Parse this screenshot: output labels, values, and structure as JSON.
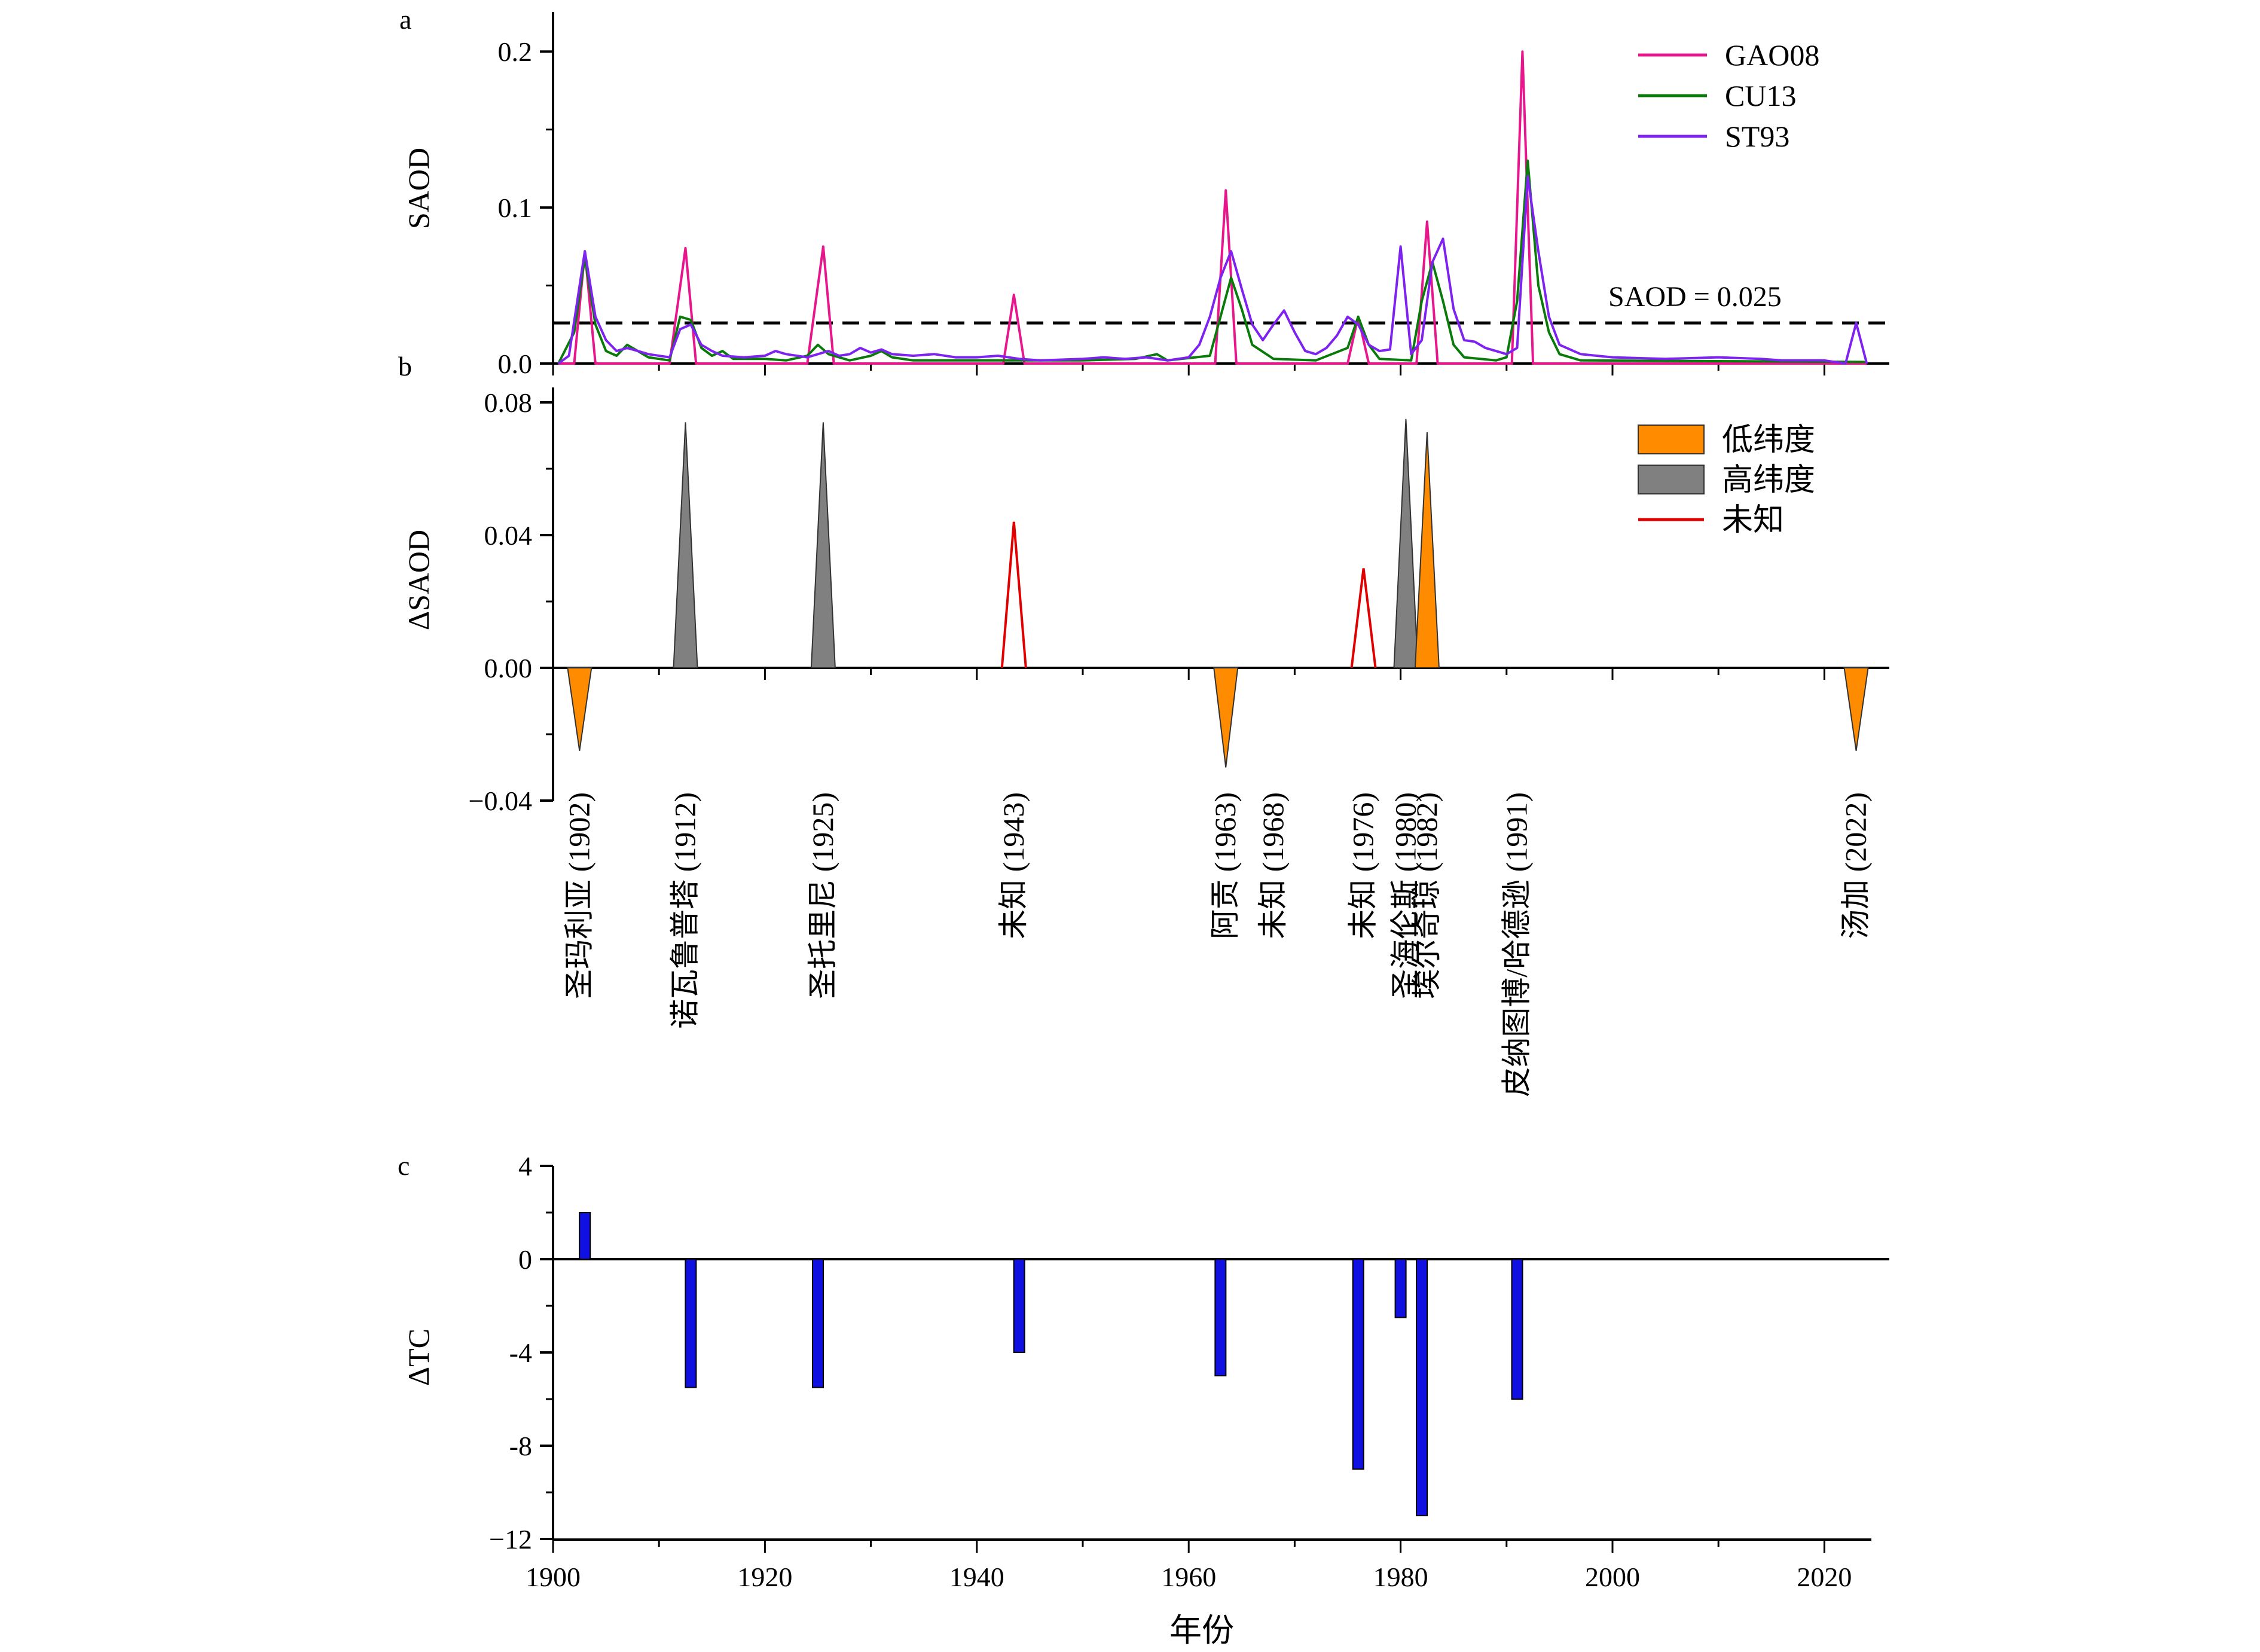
{
  "chart_data": [
    {
      "panel_label": "a",
      "type": "line",
      "ylabel": "SAOD",
      "ylim": [
        0,
        0.225
      ],
      "y_ticks": [
        {
          "v": 0.0,
          "label": "0.0"
        },
        {
          "v": 0.1,
          "label": "0.1"
        },
        {
          "v": 0.2,
          "label": "0.2"
        }
      ],
      "legend": {
        "placement": "top-right"
      },
      "annotation": {
        "text": "SAOD = 0.025",
        "y": 0.026
      },
      "series": [
        {
          "name": "GAO08",
          "color": "#e8168c",
          "points": [
            [
              1900.5,
              0
            ],
            [
              1902,
              0
            ],
            [
              1903,
              0.072
            ],
            [
              1904,
              0
            ],
            [
              1911,
              0
            ],
            [
              1912.5,
              0.074
            ],
            [
              1913.5,
              0
            ],
            [
              1924,
              0
            ],
            [
              1925.5,
              0.075
            ],
            [
              1926.5,
              0
            ],
            [
              1942.5,
              0
            ],
            [
              1943.5,
              0.044
            ],
            [
              1944.5,
              0
            ],
            [
              1962.5,
              0
            ],
            [
              1963.5,
              0.111
            ],
            [
              1964.5,
              0
            ],
            [
              1975,
              0
            ],
            [
              1976,
              0.03
            ],
            [
              1977,
              0
            ],
            [
              1981.5,
              0
            ],
            [
              1982.5,
              0.091
            ],
            [
              1983.5,
              0
            ],
            [
              1990.5,
              0
            ],
            [
              1991.5,
              0.2
            ],
            [
              1992.5,
              0
            ],
            [
              2024,
              0
            ]
          ]
        },
        {
          "name": "CU13",
          "color": "#0a7a0a",
          "points": [
            [
              1900.5,
              0
            ],
            [
              1902,
              0.02
            ],
            [
              1903,
              0.068
            ],
            [
              1904,
              0.025
            ],
            [
              1905,
              0.008
            ],
            [
              1906,
              0.005
            ],
            [
              1907,
              0.012
            ],
            [
              1908,
              0.008
            ],
            [
              1909,
              0.004
            ],
            [
              1911,
              0.002
            ],
            [
              1912,
              0.03
            ],
            [
              1913,
              0.028
            ],
            [
              1914,
              0.01
            ],
            [
              1915,
              0.005
            ],
            [
              1916,
              0.008
            ],
            [
              1917,
              0.003
            ],
            [
              1920,
              0.003
            ],
            [
              1922,
              0.002
            ],
            [
              1924,
              0.005
            ],
            [
              1925,
              0.012
            ],
            [
              1926,
              0.006
            ],
            [
              1928,
              0.002
            ],
            [
              1930,
              0.005
            ],
            [
              1931,
              0.008
            ],
            [
              1932,
              0.004
            ],
            [
              1934,
              0.002
            ],
            [
              1940,
              0.002
            ],
            [
              1950,
              0.002
            ],
            [
              1955,
              0.003
            ],
            [
              1957,
              0.006
            ],
            [
              1958,
              0.002
            ],
            [
              1962,
              0.005
            ],
            [
              1963,
              0.03
            ],
            [
              1964,
              0.055
            ],
            [
              1965,
              0.035
            ],
            [
              1966,
              0.012
            ],
            [
              1968,
              0.003
            ],
            [
              1972,
              0.002
            ],
            [
              1975,
              0.01
            ],
            [
              1976,
              0.03
            ],
            [
              1977,
              0.012
            ],
            [
              1978,
              0.003
            ],
            [
              1981,
              0.002
            ],
            [
              1982,
              0.04
            ],
            [
              1983,
              0.065
            ],
            [
              1984,
              0.04
            ],
            [
              1985,
              0.012
            ],
            [
              1986,
              0.004
            ],
            [
              1989,
              0.002
            ],
            [
              1990,
              0.004
            ],
            [
              1991,
              0.04
            ],
            [
              1992,
              0.13
            ],
            [
              1993,
              0.05
            ],
            [
              1994,
              0.02
            ],
            [
              1995,
              0.006
            ],
            [
              1997,
              0.002
            ],
            [
              2024,
              0.001
            ]
          ]
        },
        {
          "name": "ST93",
          "color": "#7e22f0",
          "points": [
            [
              1900.5,
              0
            ],
            [
              1901.5,
              0.005
            ],
            [
              1903,
              0.072
            ],
            [
              1904,
              0.03
            ],
            [
              1905,
              0.015
            ],
            [
              1906,
              0.008
            ],
            [
              1907,
              0.01
            ],
            [
              1908,
              0.008
            ],
            [
              1909,
              0.006
            ],
            [
              1911,
              0.004
            ],
            [
              1912,
              0.022
            ],
            [
              1913,
              0.025
            ],
            [
              1914,
              0.012
            ],
            [
              1915,
              0.008
            ],
            [
              1916,
              0.005
            ],
            [
              1918,
              0.004
            ],
            [
              1920,
              0.005
            ],
            [
              1921,
              0.008
            ],
            [
              1922,
              0.006
            ],
            [
              1924,
              0.004
            ],
            [
              1926,
              0.008
            ],
            [
              1927,
              0.005
            ],
            [
              1928,
              0.006
            ],
            [
              1929,
              0.01
            ],
            [
              1930,
              0.007
            ],
            [
              1931,
              0.009
            ],
            [
              1932,
              0.006
            ],
            [
              1934,
              0.005
            ],
            [
              1936,
              0.006
            ],
            [
              1938,
              0.004
            ],
            [
              1940,
              0.004
            ],
            [
              1942,
              0.005
            ],
            [
              1944,
              0.003
            ],
            [
              1946,
              0.002
            ],
            [
              1950,
              0.003
            ],
            [
              1952,
              0.004
            ],
            [
              1954,
              0.003
            ],
            [
              1956,
              0.004
            ],
            [
              1958,
              0.002
            ],
            [
              1960,
              0.004
            ],
            [
              1961,
              0.012
            ],
            [
              1962,
              0.03
            ],
            [
              1963,
              0.055
            ],
            [
              1964,
              0.072
            ],
            [
              1965,
              0.048
            ],
            [
              1966,
              0.025
            ],
            [
              1967,
              0.015
            ],
            [
              1968,
              0.025
            ],
            [
              1969,
              0.034
            ],
            [
              1970,
              0.02
            ],
            [
              1971,
              0.008
            ],
            [
              1972,
              0.006
            ],
            [
              1973,
              0.01
            ],
            [
              1974,
              0.018
            ],
            [
              1975,
              0.03
            ],
            [
              1976,
              0.025
            ],
            [
              1977,
              0.012
            ],
            [
              1978,
              0.008
            ],
            [
              1979,
              0.009
            ],
            [
              1980,
              0.075
            ],
            [
              1981,
              0.006
            ],
            [
              1982,
              0.015
            ],
            [
              1983,
              0.065
            ],
            [
              1984,
              0.08
            ],
            [
              1985,
              0.035
            ],
            [
              1986,
              0.015
            ],
            [
              1987,
              0.014
            ],
            [
              1988,
              0.01
            ],
            [
              1989,
              0.008
            ],
            [
              1990,
              0.006
            ],
            [
              1991,
              0.01
            ],
            [
              1992,
              0.12
            ],
            [
              1993,
              0.072
            ],
            [
              1994,
              0.03
            ],
            [
              1995,
              0.012
            ],
            [
              1997,
              0.006
            ],
            [
              2000,
              0.004
            ],
            [
              2005,
              0.003
            ],
            [
              2010,
              0.004
            ],
            [
              2014,
              0.003
            ],
            [
              2016,
              0.002
            ],
            [
              2020,
              0.002
            ],
            [
              2022,
              0
            ],
            [
              2023,
              0.026
            ],
            [
              2024,
              0
            ]
          ]
        }
      ]
    },
    {
      "panel_label": "b",
      "type": "area",
      "ylabel": "ΔSAOD",
      "ylim": [
        -0.048,
        0.088
      ],
      "y_ticks": [
        {
          "v": -0.04,
          "label": "−0.04"
        },
        {
          "v": 0.0,
          "label": "0.00"
        },
        {
          "v": 0.04,
          "label": "0.04"
        },
        {
          "v": 0.08,
          "label": "0.08"
        }
      ],
      "legend": {
        "placement": "top-right"
      },
      "categories": [
        {
          "name": "低纬度",
          "color": "#ff8c00"
        },
        {
          "name": "高纬度",
          "color": "#808080"
        },
        {
          "name": "未知",
          "color": "#e00000"
        }
      ],
      "events": [
        {
          "x": 1902.5,
          "value": -0.025,
          "category": 0,
          "label": "圣玛利亚 (1902)"
        },
        {
          "x": 1912.5,
          "value": 0.074,
          "category": 1,
          "label": "诺瓦鲁普塔 (1912)"
        },
        {
          "x": 1925.5,
          "value": 0.074,
          "category": 1,
          "label": "圣托里尼 (1925)"
        },
        {
          "x": 1943.5,
          "value": 0.044,
          "category": 2,
          "label": "未知 (1943)"
        },
        {
          "x": 1963.5,
          "value": -0.03,
          "category": 0,
          "label": "阿贡 (1963)"
        },
        {
          "x": 1968,
          "value": null,
          "category": null,
          "label": "未知 (1968)"
        },
        {
          "x": 1976.5,
          "value": 0.03,
          "category": 2,
          "label": "未知 (1976)"
        },
        {
          "x": 1980.5,
          "value": 0.075,
          "category": 1,
          "label": "圣海伦斯 (1980)"
        },
        {
          "x": 1982.5,
          "value": 0.071,
          "category": 0,
          "label": "埃尔奇琼 (1982)"
        },
        {
          "x": 1991,
          "value": null,
          "category": null,
          "label": "皮纳图博/哈德逊 (1991)"
        },
        {
          "x": 2023,
          "value": -0.025,
          "category": 0,
          "label": "汤加 (2022)"
        }
      ]
    },
    {
      "panel_label": "c",
      "type": "bar",
      "ylabel": "ΔTC",
      "xlabel": "年份",
      "ylim": [
        -12,
        4
      ],
      "xlim": [
        1900,
        2025
      ],
      "y_ticks": [
        {
          "v": 4,
          "label": "4"
        },
        {
          "v": 0,
          "label": "0"
        },
        {
          "v": -4,
          "label": "-4"
        },
        {
          "v": -8,
          "label": "-8"
        },
        {
          "v": -12,
          "label": "−12"
        }
      ],
      "x_ticks": [
        {
          "v": 1900,
          "label": "1900"
        },
        {
          "v": 1920,
          "label": "1920"
        },
        {
          "v": 1940,
          "label": "1940"
        },
        {
          "v": 1960,
          "label": "1960"
        },
        {
          "v": 1980,
          "label": "1980"
        },
        {
          "v": 2000,
          "label": "2000"
        },
        {
          "v": 2020,
          "label": "2020"
        }
      ],
      "bar_color": "#1010e0",
      "bars": [
        {
          "x": 1903,
          "value": 2
        },
        {
          "x": 1913,
          "value": -5.5
        },
        {
          "x": 1925,
          "value": -5.5
        },
        {
          "x": 1944,
          "value": -4
        },
        {
          "x": 1963,
          "value": -5
        },
        {
          "x": 1976,
          "value": -9
        },
        {
          "x": 1980,
          "value": -2.5
        },
        {
          "x": 1982,
          "value": -11
        },
        {
          "x": 1991,
          "value": -6
        }
      ]
    }
  ]
}
